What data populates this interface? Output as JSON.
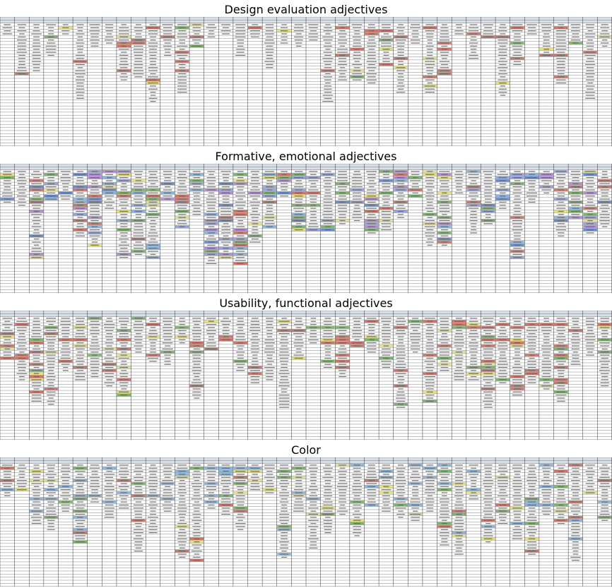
{
  "sections": [
    {
      "title": "Design evaluation adjectives",
      "palette": [
        "#c9776c",
        "#c9776c",
        "#c9776c",
        "#e5e08a",
        "#7fb26f"
      ],
      "density": 0.11,
      "depthMin": 6,
      "depthMax": 30
    },
    {
      "title": "Formative, emotional adjectives",
      "palette": [
        "#c9776c",
        "#9aa3d6",
        "#b08fcf",
        "#7fb26f",
        "#e5e08a",
        "#8fb4d8",
        "#6b8ccf"
      ],
      "density": 0.32,
      "depthMin": 10,
      "depthMax": 34
    },
    {
      "title": "Usability, functional adjectives",
      "palette": [
        "#c9776c",
        "#c9776c",
        "#c9776c",
        "#7fb26f",
        "#e5e08a"
      ],
      "density": 0.18,
      "depthMin": 10,
      "depthMax": 34
    },
    {
      "title": "Color",
      "palette": [
        "#c9776c",
        "#8fb4d8",
        "#8fb4d8",
        "#e5e08a",
        "#7fb26f"
      ],
      "density": 0.16,
      "depthMin": 10,
      "depthMax": 36
    }
  ]
}
